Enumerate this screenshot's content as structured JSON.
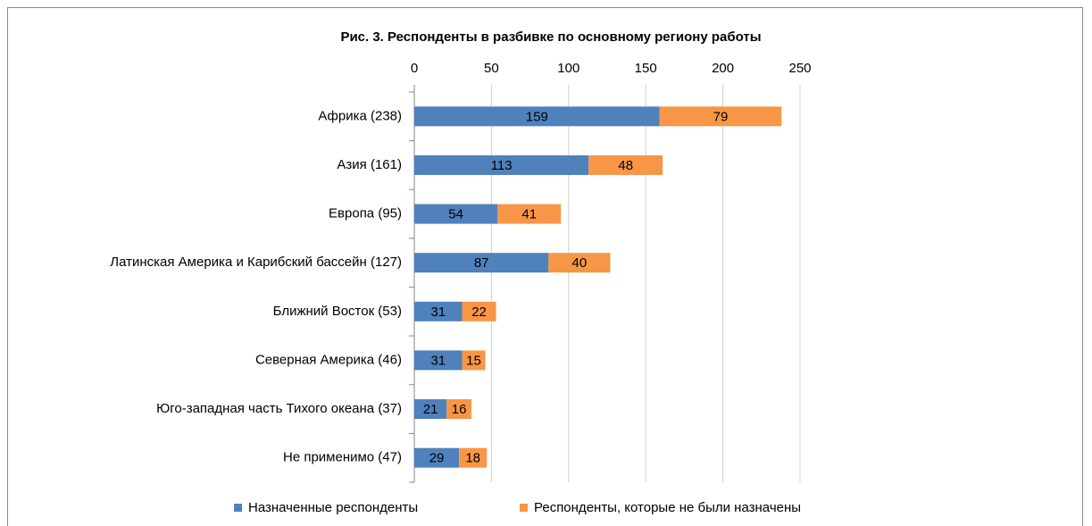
{
  "chart_data": {
    "type": "stacked_barh",
    "title": "Рис. 3. Респонденты в разбивке по основному региону работы",
    "categories": [
      "Африка (238)",
      "Азия (161)",
      "Европа (95)",
      "Латинская Америка и Карибский бассейн (127)",
      "Ближний Восток (53)",
      "Северная Америка (46)",
      "Юго-западная часть Тихого океана (37)",
      "Не применимо (47)"
    ],
    "series": [
      {
        "name": "Назначенные респонденты",
        "color": "#4f81bd",
        "values": [
          159,
          113,
          54,
          87,
          31,
          31,
          21,
          29
        ]
      },
      {
        "name": "Респонденты, которые не были назначены",
        "color": "#f79646",
        "values": [
          79,
          48,
          41,
          40,
          22,
          15,
          16,
          18
        ]
      }
    ],
    "xlim": [
      0,
      250
    ],
    "xticks": [
      0,
      50,
      100,
      150,
      200,
      250
    ],
    "grid": true,
    "legend": "bottom"
  }
}
